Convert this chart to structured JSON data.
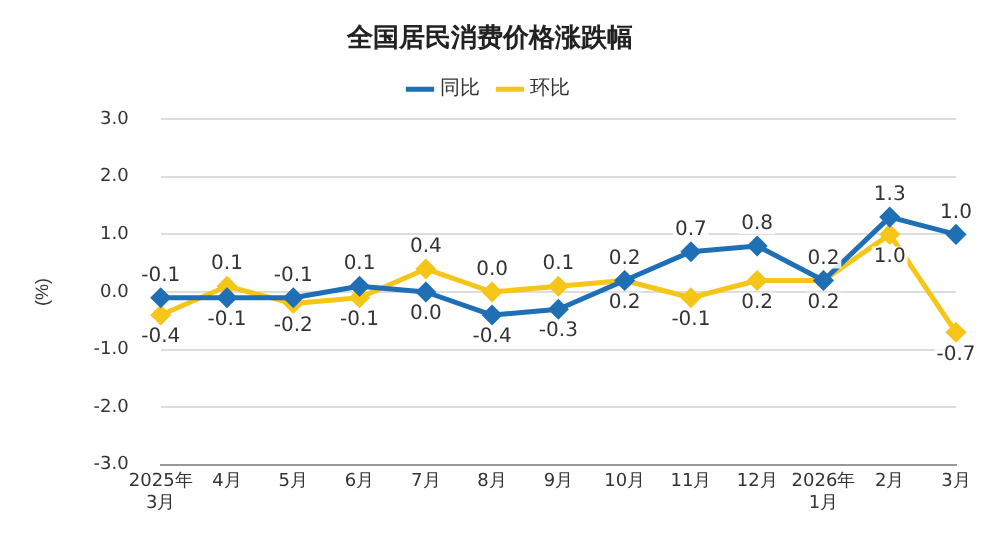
{
  "chart_data": {
    "type": "line",
    "title": "全国居民消费价格涨跌幅",
    "ylabel": "(%)",
    "categories": [
      "2025年\n3月",
      "4月",
      "5月",
      "6月",
      "7月",
      "8月",
      "9月",
      "10月",
      "11月",
      "12月",
      "2026年\n1月",
      "2月",
      "3月"
    ],
    "series": [
      {
        "name": "同比",
        "color": "#1f6fb5",
        "values": [
          -0.1,
          -0.1,
          -0.1,
          0.1,
          0.0,
          -0.4,
          -0.3,
          0.2,
          0.7,
          0.8,
          0.2,
          1.3,
          1.0
        ],
        "value_labels": [
          "-0.1",
          "-0.1",
          "-0.1",
          "0.1",
          "0.0",
          "-0.4",
          "-0.3",
          "0.2",
          "0.7",
          "0.8",
          "0.2",
          "1.3",
          "1.0"
        ]
      },
      {
        "name": "环比",
        "color": "#f5c518",
        "values": [
          -0.4,
          0.1,
          -0.2,
          -0.1,
          0.4,
          0.0,
          0.1,
          0.2,
          -0.1,
          0.2,
          0.2,
          1.0,
          -0.7
        ],
        "value_labels": [
          "-0.4",
          "0.1",
          "-0.2",
          "-0.1",
          "0.4",
          "0.0",
          "0.1",
          "0.2",
          "-0.1",
          "0.2",
          "0.2",
          "1.0",
          "-0.7"
        ]
      }
    ],
    "ylim": [
      -3,
      3
    ],
    "yticks": [
      {
        "value": -3,
        "label": "-3.0"
      },
      {
        "value": -2,
        "label": "-2.0"
      },
      {
        "value": -1,
        "label": "-1.0"
      },
      {
        "value": 0,
        "label": "0.0"
      },
      {
        "value": 1,
        "label": "1.0"
      },
      {
        "value": 2,
        "label": "2.0"
      },
      {
        "value": 3,
        "label": "3.0"
      }
    ],
    "grid": "y",
    "legend": "top",
    "marker": "diamond",
    "line_style": "solid"
  }
}
